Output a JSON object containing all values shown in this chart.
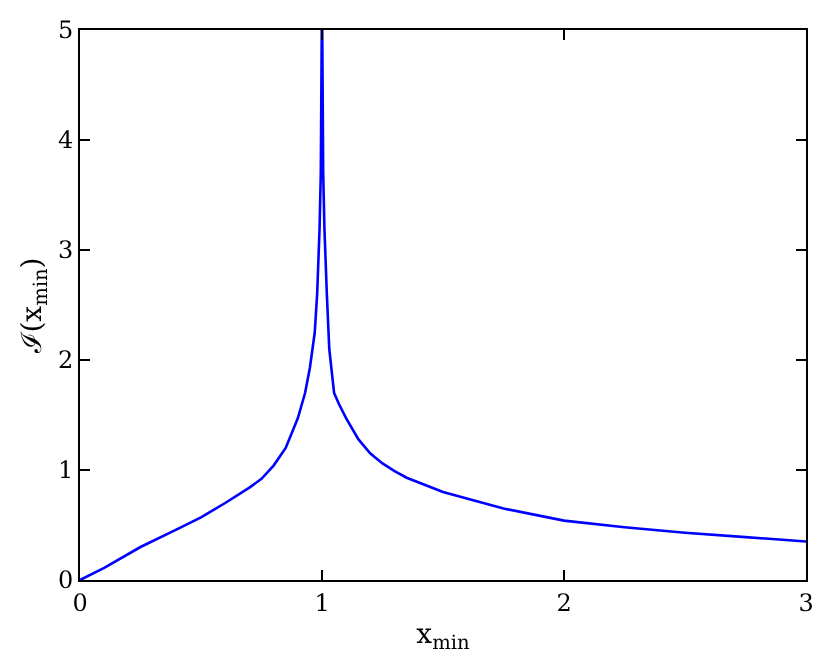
{
  "chart_data": {
    "type": "line",
    "xlabel": "x$_{min}$",
    "ylabel": "ℐ(x$_{min}$)",
    "series": [
      {
        "color": "#0000ff",
        "x": [
          0,
          0.1,
          0.25,
          0.4,
          0.5,
          0.6,
          0.7,
          0.75,
          0.8,
          0.85,
          0.9,
          0.93,
          0.95,
          0.97,
          0.98,
          0.99,
          0.995,
          0.999,
          1.0,
          1.001,
          1.005,
          1.01,
          1.02,
          1.03,
          1.05,
          1.07,
          1.1,
          1.15,
          1.2,
          1.25,
          1.3,
          1.35,
          1.5,
          1.75,
          2,
          2.25,
          2.5,
          2.75,
          3
        ],
        "values": [
          0,
          0.11,
          0.3,
          0.46,
          0.57,
          0.7,
          0.84,
          0.92,
          1.04,
          1.2,
          1.47,
          1.7,
          1.93,
          2.25,
          2.6,
          3.2,
          3.7,
          5,
          5,
          5,
          3.7,
          3.2,
          2.6,
          2.1,
          1.7,
          1.6,
          1.47,
          1.28,
          1.15,
          1.06,
          0.99,
          0.93,
          0.8,
          0.65,
          0.54,
          0.48,
          0.43,
          0.39,
          0.35
        ]
      }
    ],
    "xlim": [
      0,
      3
    ],
    "ylim": [
      0,
      5
    ],
    "xticks": [
      0,
      1,
      2,
      3
    ],
    "yticks": [
      0,
      1,
      2,
      3,
      4,
      5
    ],
    "legend": false,
    "marker": "none",
    "line_style": "solid"
  }
}
